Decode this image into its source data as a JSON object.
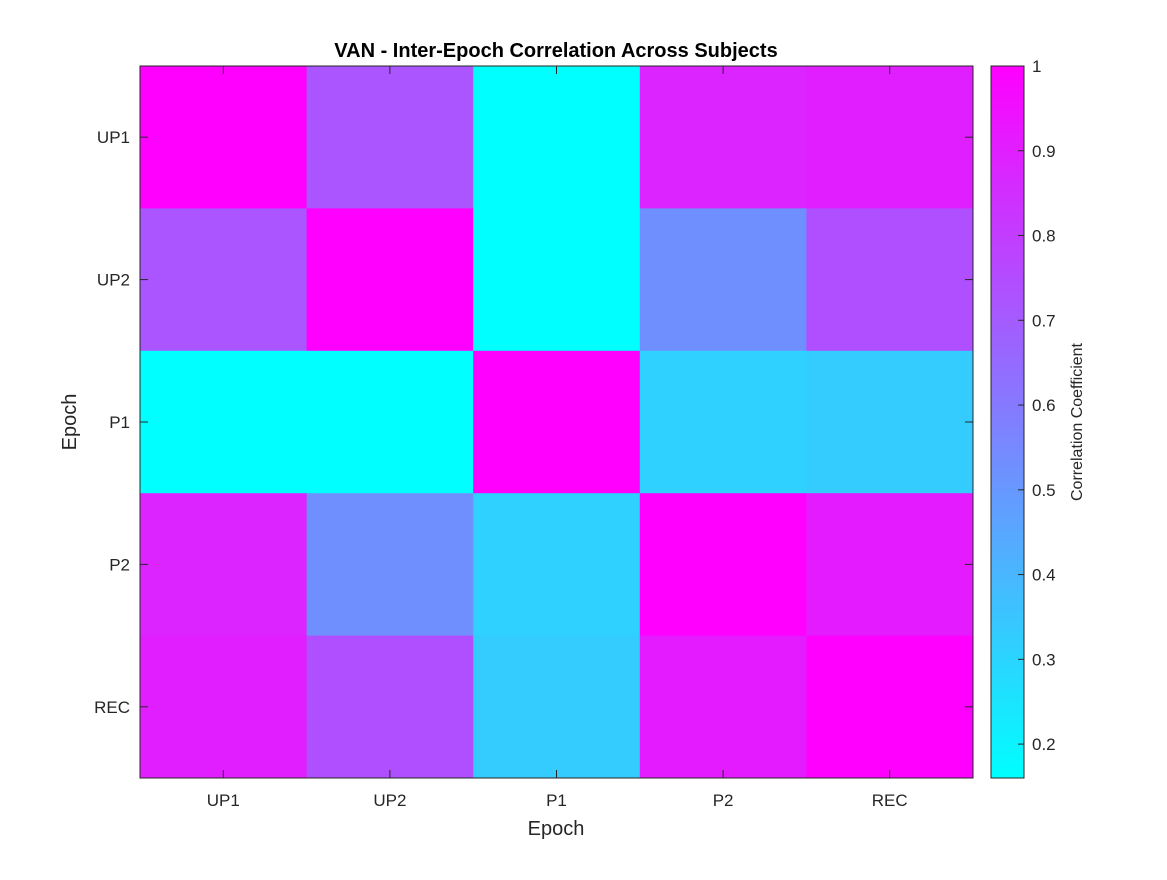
{
  "chart_data": {
    "type": "heatmap",
    "title": "VAN - Inter-Epoch Correlation Across Subjects",
    "xlabel": "Epoch",
    "ylabel": "Epoch",
    "x_categories": [
      "UP1",
      "UP2",
      "P1",
      "P2",
      "REC"
    ],
    "y_categories": [
      "UP1",
      "UP2",
      "P1",
      "P2",
      "REC"
    ],
    "values": [
      [
        1.0,
        0.72,
        0.16,
        0.88,
        0.9
      ],
      [
        0.72,
        1.0,
        0.16,
        0.53,
        0.74
      ],
      [
        0.16,
        0.16,
        1.0,
        0.31,
        0.33
      ],
      [
        0.88,
        0.53,
        0.31,
        1.0,
        0.91
      ],
      [
        0.9,
        0.74,
        0.33,
        0.91,
        1.0
      ]
    ],
    "colormap": "cool",
    "color_low": "#00ffff",
    "color_high": "#ff00ff",
    "clim": [
      0.16,
      1.0
    ],
    "colorbar": {
      "label": "Correlation Coefficient",
      "ticks": [
        0.2,
        0.3,
        0.4,
        0.5,
        0.6,
        0.7,
        0.8,
        0.9,
        1
      ],
      "tick_labels": [
        "0.2",
        "0.3",
        "0.4",
        "0.5",
        "0.6",
        "0.7",
        "0.8",
        "0.9",
        "1"
      ],
      "position": "right"
    }
  }
}
